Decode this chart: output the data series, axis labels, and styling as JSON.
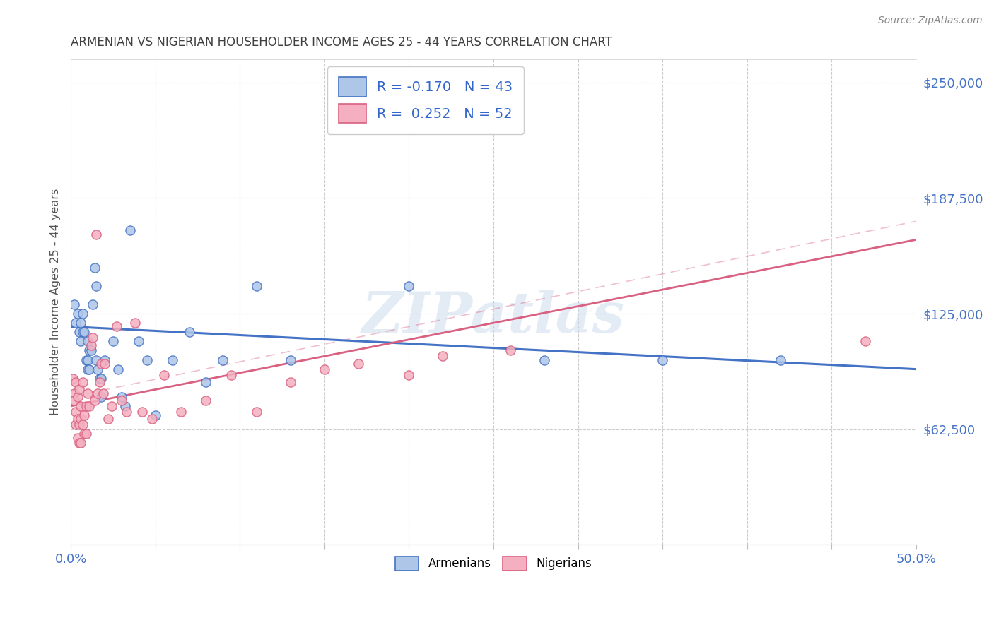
{
  "title": "ARMENIAN VS NIGERIAN HOUSEHOLDER INCOME AGES 25 - 44 YEARS CORRELATION CHART",
  "source": "Source: ZipAtlas.com",
  "ylabel": "Householder Income Ages 25 - 44 years",
  "xlim": [
    0.0,
    0.5
  ],
  "ylim": [
    0,
    262500
  ],
  "yticks": [
    0,
    62500,
    125000,
    187500,
    250000
  ],
  "ytick_labels": [
    "",
    "$62,500",
    "$125,000",
    "$187,500",
    "$250,000"
  ],
  "xticks": [
    0.0,
    0.05,
    0.1,
    0.15,
    0.2,
    0.25,
    0.3,
    0.35,
    0.4,
    0.45,
    0.5
  ],
  "xtick_labels_show": [
    "0.0%",
    "",
    "",
    "",
    "",
    "",
    "",
    "",
    "",
    "",
    "50.0%"
  ],
  "armenian_color": "#aec6e8",
  "armenian_edge_color": "#4472c4",
  "nigerian_color": "#f4b0c0",
  "nigerian_edge_color": "#d96080",
  "armenian_line_color": "#4472c4",
  "nigerian_line_color": "#d96080",
  "title_color": "#404040",
  "axis_label_color": "#555555",
  "tick_color": "#4472c4",
  "watermark": "ZIPatlas",
  "R_armenian": "-0.170",
  "N_armenian": "43",
  "R_nigerian": "0.252",
  "N_nigerian": "52",
  "armenian_x": [
    0.002,
    0.003,
    0.004,
    0.005,
    0.006,
    0.006,
    0.007,
    0.007,
    0.008,
    0.009,
    0.01,
    0.01,
    0.01,
    0.011,
    0.011,
    0.012,
    0.013,
    0.014,
    0.015,
    0.015,
    0.016,
    0.017,
    0.018,
    0.018,
    0.02,
    0.025,
    0.028,
    0.03,
    0.032,
    0.035,
    0.04,
    0.045,
    0.05,
    0.06,
    0.07,
    0.08,
    0.09,
    0.11,
    0.13,
    0.2,
    0.28,
    0.35,
    0.42
  ],
  "armenian_y": [
    130000,
    120000,
    125000,
    115000,
    120000,
    110000,
    125000,
    115000,
    115000,
    100000,
    110000,
    100000,
    95000,
    105000,
    95000,
    105000,
    130000,
    150000,
    140000,
    100000,
    95000,
    90000,
    90000,
    80000,
    100000,
    110000,
    95000,
    80000,
    75000,
    170000,
    110000,
    100000,
    70000,
    100000,
    115000,
    88000,
    100000,
    140000,
    100000,
    140000,
    100000,
    100000,
    100000
  ],
  "nigerian_x": [
    0.001,
    0.002,
    0.002,
    0.003,
    0.003,
    0.003,
    0.004,
    0.004,
    0.004,
    0.005,
    0.005,
    0.005,
    0.006,
    0.006,
    0.006,
    0.007,
    0.007,
    0.008,
    0.008,
    0.009,
    0.009,
    0.01,
    0.011,
    0.012,
    0.013,
    0.014,
    0.015,
    0.016,
    0.017,
    0.018,
    0.019,
    0.02,
    0.022,
    0.024,
    0.027,
    0.03,
    0.033,
    0.038,
    0.042,
    0.048,
    0.055,
    0.065,
    0.08,
    0.095,
    0.11,
    0.13,
    0.15,
    0.17,
    0.2,
    0.22,
    0.26,
    0.47
  ],
  "nigerian_y": [
    90000,
    82000,
    78000,
    88000,
    72000,
    65000,
    80000,
    68000,
    58000,
    84000,
    65000,
    55000,
    75000,
    68000,
    55000,
    65000,
    88000,
    70000,
    60000,
    75000,
    60000,
    82000,
    75000,
    108000,
    112000,
    78000,
    168000,
    82000,
    88000,
    98000,
    82000,
    98000,
    68000,
    75000,
    118000,
    78000,
    72000,
    120000,
    72000,
    68000,
    92000,
    72000,
    78000,
    92000,
    72000,
    88000,
    95000,
    98000,
    92000,
    102000,
    105000,
    110000
  ]
}
